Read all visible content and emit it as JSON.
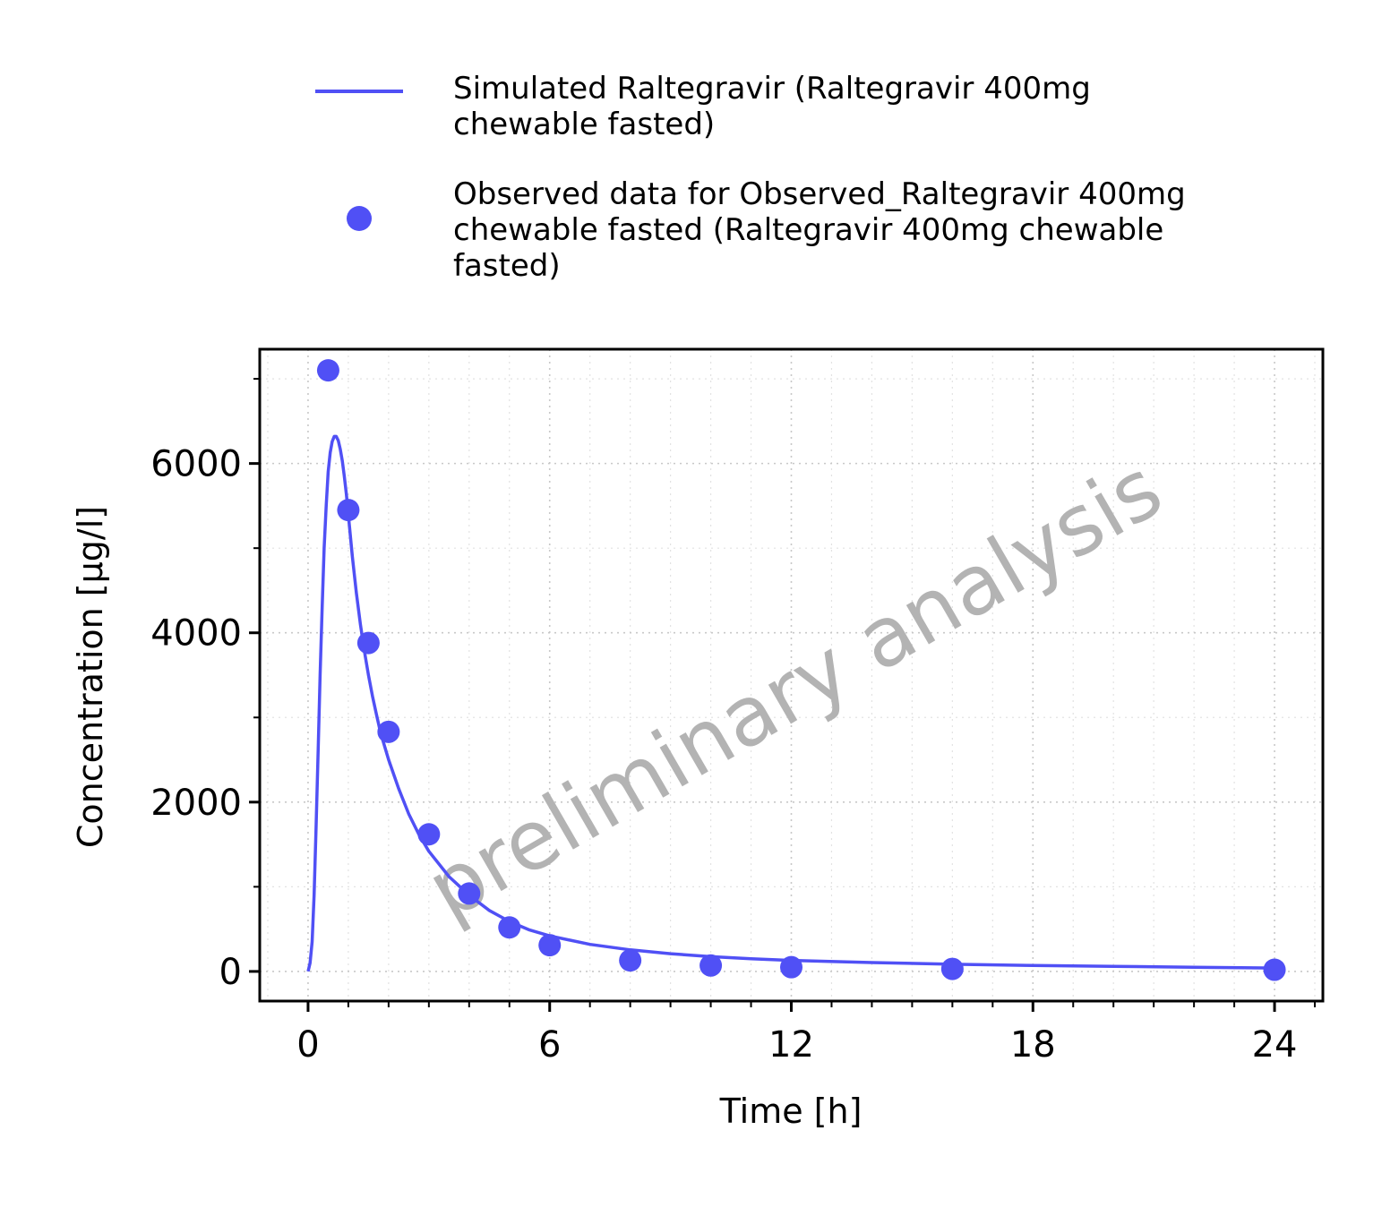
{
  "chart_data": {
    "type": "line",
    "title": "",
    "xlabel": "Time [h]",
    "ylabel": "Concentration [µg/l]",
    "xlim": [
      -1.2,
      25.2
    ],
    "ylim": [
      -350,
      7350
    ],
    "x_ticks": [
      "0",
      "6",
      "12",
      "18",
      "24"
    ],
    "y_ticks": [
      "0",
      "2000",
      "4000",
      "6000"
    ],
    "grid": true,
    "legend_position": "top",
    "watermark": "preliminary analysis",
    "color": "#5050f5",
    "series": [
      {
        "name": "Simulated Raltegravir (Raltegravir 400mg chewable fasted)",
        "kind": "line",
        "x": [
          0,
          0.05,
          0.1,
          0.15,
          0.2,
          0.25,
          0.3,
          0.35,
          0.4,
          0.45,
          0.5,
          0.55,
          0.6,
          0.65,
          0.7,
          0.75,
          0.8,
          0.85,
          0.9,
          0.95,
          1.0,
          1.1,
          1.2,
          1.3,
          1.4,
          1.5,
          1.6,
          1.7,
          1.8,
          2.0,
          2.25,
          2.5,
          2.75,
          3.0,
          3.5,
          4.0,
          4.5,
          5.0,
          5.5,
          6.0,
          7.0,
          8.0,
          9.0,
          10.0,
          11.0,
          12.0,
          14.0,
          16.0,
          18.0,
          20.0,
          22.0,
          24.0
        ],
        "y": [
          0,
          100,
          350,
          900,
          1700,
          2600,
          3500,
          4300,
          5000,
          5500,
          5900,
          6130,
          6260,
          6320,
          6320,
          6270,
          6170,
          6030,
          5850,
          5640,
          5400,
          4900,
          4470,
          4100,
          3780,
          3500,
          3250,
          3030,
          2820,
          2500,
          2160,
          1860,
          1620,
          1420,
          1120,
          900,
          720,
          590,
          490,
          420,
          320,
          255,
          210,
          175,
          150,
          130,
          105,
          85,
          70,
          60,
          50,
          40
        ]
      },
      {
        "name": "Observed data for Observed_Raltegravir 400mg chewable fasted (Raltegravir 400mg chewable fasted)",
        "kind": "scatter",
        "x": [
          0.5,
          1.0,
          1.5,
          2.0,
          3.0,
          4.0,
          5.0,
          6.0,
          8.0,
          10.0,
          12.0,
          16.0,
          24.0
        ],
        "y": [
          7100,
          5450,
          3880,
          2830,
          1620,
          920,
          520,
          310,
          130,
          70,
          50,
          30,
          20
        ]
      }
    ]
  }
}
